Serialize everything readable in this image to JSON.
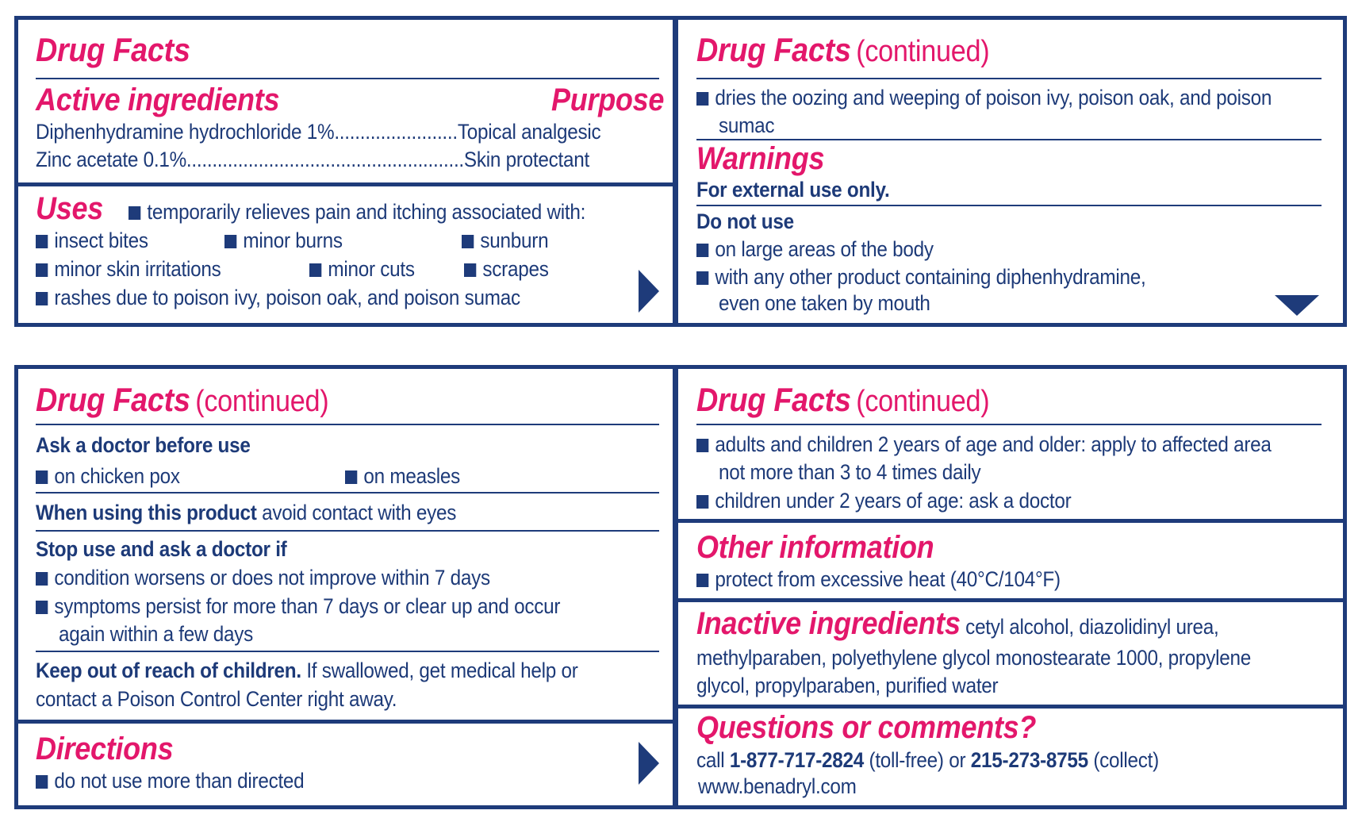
{
  "p1": {
    "title": "Drug Facts",
    "active_heading": "Active ingredients",
    "purpose_heading": "Purpose",
    "row1": "Diphenhydramine hydrochloride 1%........................Topical analgesic",
    "row2": "Zinc acetate 0.1%......................................................Skin protectant",
    "uses_heading": "Uses",
    "uses_intro": "temporarily relieves pain and itching associated with:",
    "uses_items": [
      "insect bites",
      "minor burns",
      "sunburn",
      "minor skin irritations",
      "minor cuts",
      "scrapes",
      "rashes due to poison ivy, poison oak, and poison sumac"
    ]
  },
  "p2": {
    "title": "Drug Facts",
    "title_suffix": "(continued)",
    "item1_line1": "dries the oozing and weeping of poison ivy, poison oak, and poison",
    "item1_line2": "sumac",
    "warnings_heading": "Warnings",
    "external": "For external use only.",
    "do_not_use": "Do not use",
    "dnu1": "on large areas of the body",
    "dnu2_line1": "with any other product containing diphenhydramine,",
    "dnu2_line2": "even one taken by mouth"
  },
  "p3": {
    "title": "Drug Facts",
    "title_suffix": "(continued)",
    "ask_heading": "Ask a doctor before use",
    "ask_items": [
      "on chicken pox",
      "on measles"
    ],
    "when_bold": "When using this product",
    "when_text": " avoid contact with eyes",
    "stop_heading": "Stop use and ask a doctor if",
    "stop1": "condition worsens or does not improve within 7 days",
    "stop2_line1": "symptoms persist for more than 7 days or clear up and occur",
    "stop2_line2": "again within a few days",
    "keep_bold": "Keep out of reach of children.",
    "keep_text": " If swallowed, get medical help or",
    "keep_line2": "contact a Poison Control Center right away.",
    "directions_heading": "Directions",
    "directions_item": "do not use more than directed"
  },
  "p4": {
    "title": "Drug Facts",
    "title_suffix": "(continued)",
    "dir1_line1": "adults and children 2 years of age and older: apply to affected area",
    "dir1_line2": "not more than 3 to 4 times daily",
    "dir2": "children under 2 years of age: ask a doctor",
    "other_heading": "Other information",
    "other_item": "protect from excessive heat (40°C/104°F)",
    "inactive_heading": "Inactive ingredients",
    "inactive_line1": " cetyl alcohol, diazolidinyl urea,",
    "inactive_line2": "methylparaben, polyethylene glycol monostearate 1000, propylene",
    "inactive_line3": "glycol, propylparaben, purified water",
    "questions_heading": "Questions or comments?",
    "call_prefix": "call ",
    "phone1": "1-877-717-2824",
    "tollfree": " (toll-free) or ",
    "phone2": "215-273-8755",
    "collect": " (collect)",
    "website": "www.benadryl.com"
  },
  "colors": {
    "navy": "#1e3b7a",
    "magenta": "#e3176b"
  },
  "icons": {
    "bullet": "square-bullet-icon",
    "next": "arrow-right-icon",
    "more": "arrow-down-icon"
  }
}
